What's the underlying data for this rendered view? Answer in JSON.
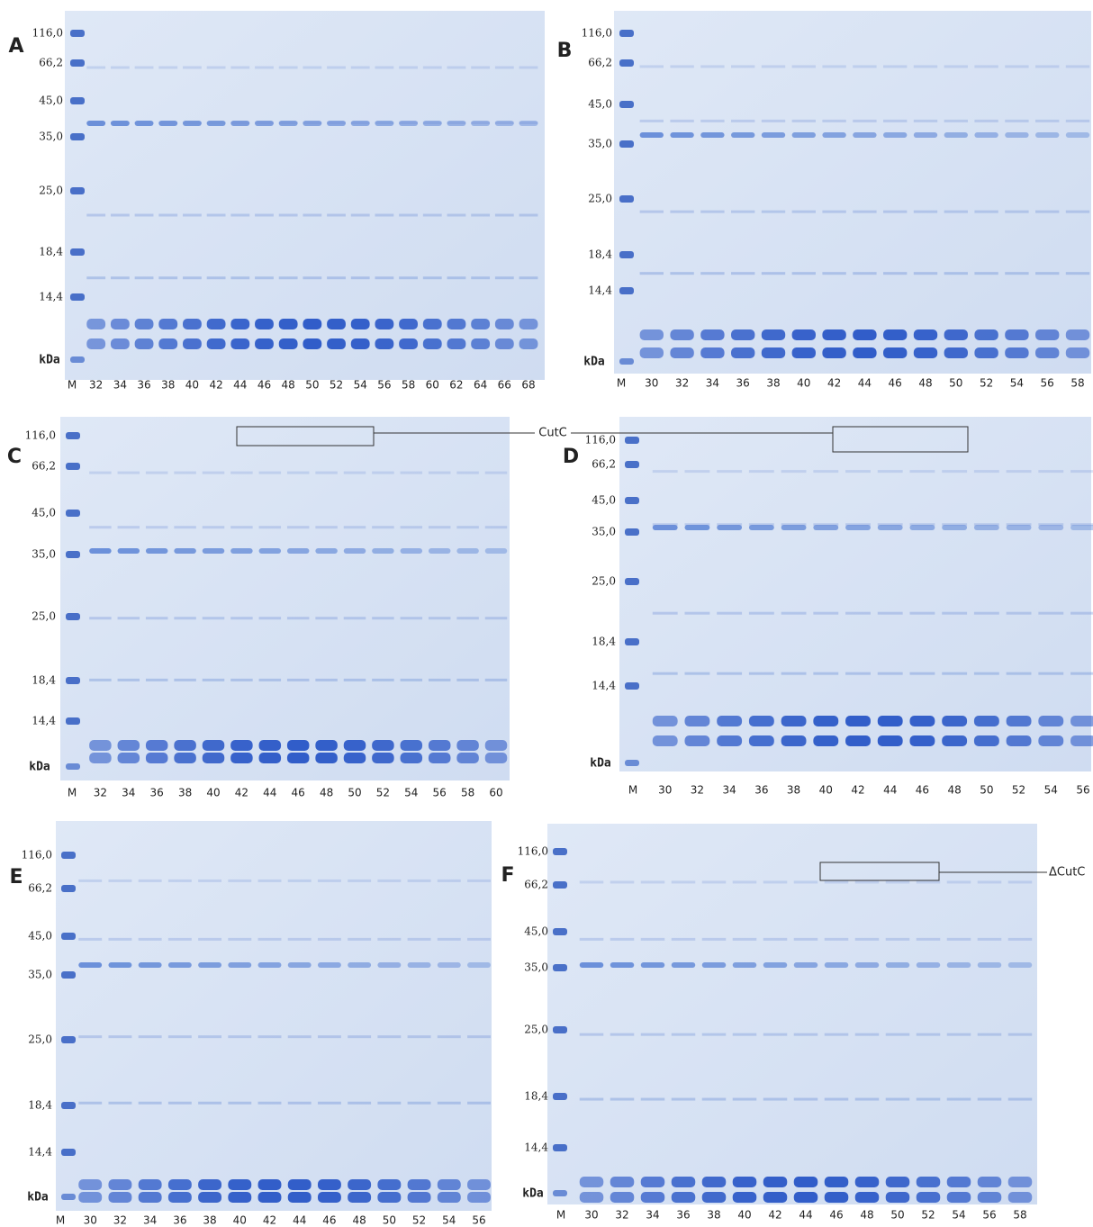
{
  "panels": [
    {
      "letter": "A",
      "markers": [
        "116,0",
        "66,2",
        "45,0",
        "35,0",
        "25,0",
        "18,4",
        "14,4"
      ],
      "unit": "kDa",
      "lanes": [
        "M",
        "32",
        "34",
        "36",
        "38",
        "40",
        "42",
        "44",
        "46",
        "48",
        "50",
        "52",
        "54",
        "56",
        "58",
        "60",
        "62",
        "64",
        "66",
        "68"
      ]
    },
    {
      "letter": "B",
      "markers": [
        "116,0",
        "66,2",
        "45,0",
        "35,0",
        "25,0",
        "18,4",
        "14,4"
      ],
      "unit": "kDa",
      "lanes": [
        "M",
        "30",
        "32",
        "34",
        "36",
        "38",
        "40",
        "42",
        "44",
        "46",
        "48",
        "50",
        "52",
        "54",
        "56",
        "58"
      ]
    },
    {
      "letter": "C",
      "markers": [
        "116,0",
        "66,2",
        "45,0",
        "35,0",
        "25,0",
        "18,4",
        "14,4"
      ],
      "unit": "kDa",
      "lanes": [
        "M",
        "32",
        "34",
        "36",
        "38",
        "40",
        "42",
        "44",
        "46",
        "48",
        "50",
        "52",
        "54",
        "56",
        "58",
        "60"
      ]
    },
    {
      "letter": "D",
      "markers": [
        "116,0",
        "66,2",
        "45,0",
        "35,0",
        "25,0",
        "18,4",
        "14,4"
      ],
      "unit": "kDa",
      "lanes": [
        "M",
        "30",
        "32",
        "34",
        "36",
        "38",
        "40",
        "42",
        "44",
        "46",
        "48",
        "50",
        "52",
        "54",
        "56"
      ]
    },
    {
      "letter": "E",
      "markers": [
        "116,0",
        "66,2",
        "45,0",
        "35,0",
        "25,0",
        "18,4",
        "14,4"
      ],
      "unit": "kDa",
      "lanes": [
        "M",
        "30",
        "32",
        "34",
        "36",
        "38",
        "40",
        "42",
        "44",
        "46",
        "48",
        "50",
        "52",
        "54",
        "56"
      ]
    },
    {
      "letter": "F",
      "markers": [
        "116,0",
        "66,2",
        "45,0",
        "35,0",
        "25,0",
        "18,4",
        "14,4"
      ],
      "unit": "kDa",
      "lanes": [
        "M",
        "30",
        "32",
        "34",
        "36",
        "38",
        "40",
        "42",
        "44",
        "46",
        "48",
        "50",
        "52",
        "54",
        "56",
        "58"
      ]
    }
  ],
  "annotations": [
    "CutC",
    "ΔCutC"
  ]
}
